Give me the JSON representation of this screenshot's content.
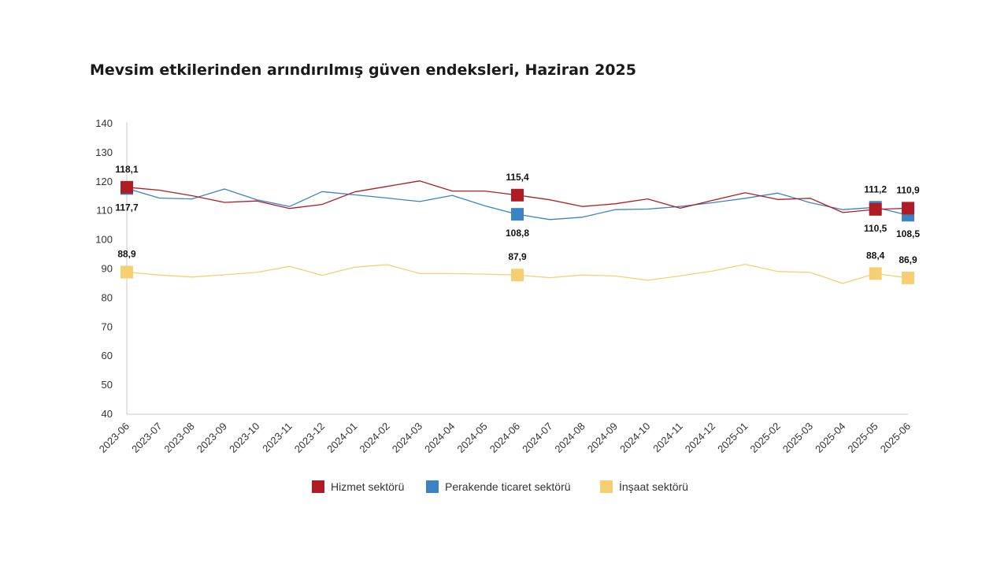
{
  "colors": {
    "hizmet": "#b01c24",
    "perakende": "#3a84c4",
    "insaat": "#f6cf72",
    "axis": "#c8c8c8"
  },
  "chart_data": {
    "type": "line",
    "title": "Mevsim etkilerinden arındırılmış güven endeksleri, Haziran 2025",
    "xlabel": "",
    "ylabel": "",
    "ylim": [
      40,
      140
    ],
    "yticks": [
      40,
      50,
      60,
      70,
      80,
      90,
      100,
      110,
      120,
      130,
      140
    ],
    "grid": false,
    "legend_position": "bottom",
    "categories": [
      "2023-06",
      "2023-07",
      "2023-08",
      "2023-09",
      "2023-10",
      "2023-11",
      "2023-12",
      "2024-01",
      "2024-02",
      "2024-03",
      "2024-04",
      "2024-05",
      "2024-06",
      "2024-07",
      "2024-08",
      "2024-09",
      "2024-10",
      "2024-11",
      "2024-12",
      "2025-01",
      "2025-02",
      "2025-03",
      "2025-04",
      "2025-05",
      "2025-06"
    ],
    "series": [
      {
        "name": "Hizmet sektörü",
        "color_key": "hizmet",
        "values": [
          118.1,
          117.1,
          115.2,
          112.9,
          113.4,
          110.8,
          112.2,
          116.5,
          118.4,
          120.3,
          116.8,
          116.8,
          115.4,
          113.8,
          111.5,
          112.4,
          114.1,
          110.9,
          113.6,
          116.2,
          113.9,
          114.3,
          109.4,
          110.5,
          110.9
        ],
        "markers": [
          {
            "index": 0,
            "label": "118,1",
            "label_pos": "above"
          },
          {
            "index": 12,
            "label": "115,4",
            "label_pos": "above"
          },
          {
            "index": 23,
            "label": "110,5",
            "label_pos": "below"
          },
          {
            "index": 24,
            "label": "110,9",
            "label_pos": "above"
          }
        ]
      },
      {
        "name": "Perakende ticaret sektörü",
        "color_key": "perakende",
        "values": [
          117.7,
          114.4,
          114.1,
          117.5,
          113.8,
          111.5,
          116.6,
          115.5,
          114.4,
          113.2,
          115.3,
          111.7,
          108.8,
          107.0,
          107.8,
          110.4,
          110.6,
          111.5,
          112.8,
          114.3,
          116.1,
          112.8,
          110.4,
          111.2,
          108.5
        ],
        "markers": [
          {
            "index": 0,
            "label": "117,7",
            "label_pos": "below"
          },
          {
            "index": 12,
            "label": "108,8",
            "label_pos": "below"
          },
          {
            "index": 23,
            "label": "111,2",
            "label_pos": "above"
          },
          {
            "index": 24,
            "label": "108,5",
            "label_pos": "below"
          }
        ]
      },
      {
        "name": "İnşaat sektörü",
        "color_key": "insaat",
        "values": [
          88.9,
          87.9,
          87.2,
          88.0,
          88.8,
          90.9,
          87.8,
          90.6,
          91.5,
          88.4,
          88.4,
          88.2,
          87.9,
          87.0,
          87.9,
          87.6,
          86.1,
          87.6,
          89.3,
          91.6,
          89.1,
          88.8,
          85.0,
          88.4,
          86.9
        ],
        "markers": [
          {
            "index": 0,
            "label": "88,9",
            "label_pos": "above"
          },
          {
            "index": 12,
            "label": "87,9",
            "label_pos": "above"
          },
          {
            "index": 23,
            "label": "88,4",
            "label_pos": "above"
          },
          {
            "index": 24,
            "label": "86,9",
            "label_pos": "above"
          }
        ]
      }
    ]
  }
}
